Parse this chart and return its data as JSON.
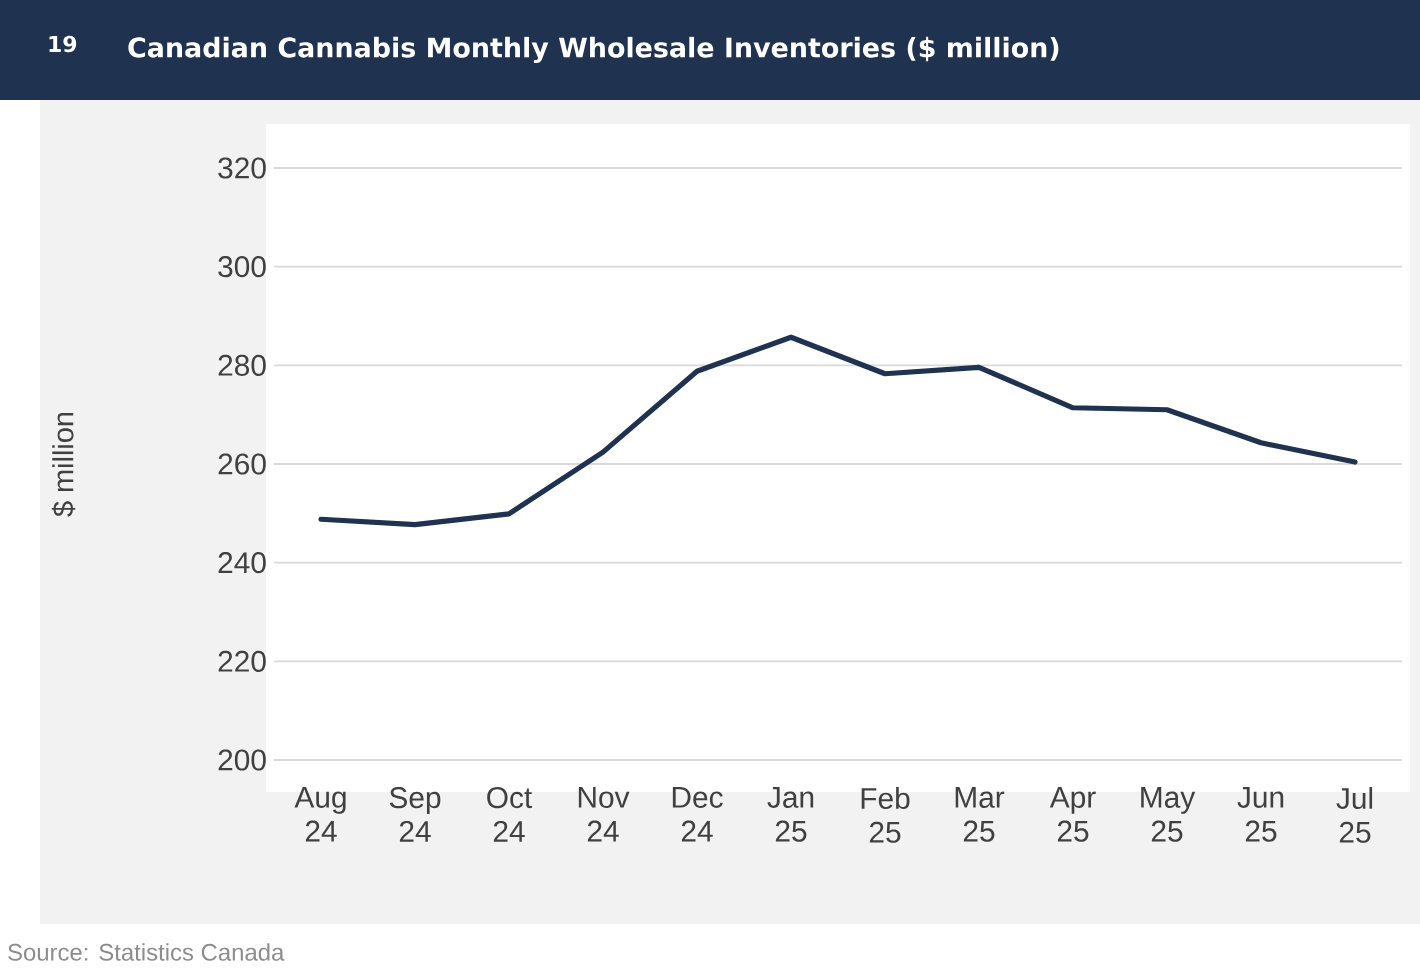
{
  "chart_data": {
    "type": "line",
    "title": "Canadian Cannabis Monthly Wholesale Inventories ($ million)",
    "ylabel": "$ million",
    "categories": [
      "Aug 24",
      "Sep 24",
      "Oct 24",
      "Nov 24",
      "Dec 24",
      "Jan 25",
      "Feb 25",
      "Mar 25",
      "Apr 25",
      "May 25",
      "Jun 25",
      "Jul 25"
    ],
    "values": [
      248.8,
      247.7,
      249.9,
      262.4,
      278.8,
      285.7,
      278.3,
      279.6,
      271.4,
      271.0,
      264.3,
      260.4
    ],
    "color": "#1f3350",
    "ylim": [
      200,
      320
    ],
    "yticks": [
      200,
      220,
      240,
      260,
      280,
      300,
      320
    ],
    "grid": "y",
    "annotations": [
      "19",
      "Source: Statistics Canada"
    ]
  }
}
